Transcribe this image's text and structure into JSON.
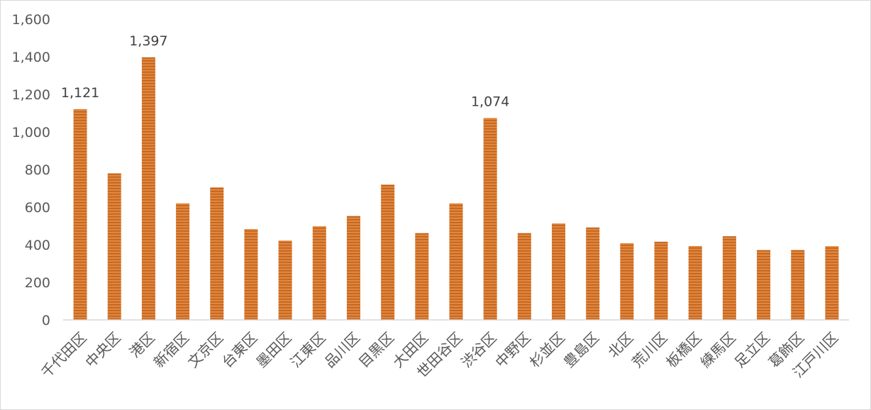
{
  "chart_data": {
    "type": "bar",
    "title": "",
    "xlabel": "",
    "ylabel": "",
    "ylim": [
      0,
      1600
    ],
    "y_ticks": [
      0,
      200,
      400,
      600,
      800,
      1000,
      1200,
      1400,
      1600
    ],
    "y_tick_labels": [
      "0",
      "200",
      "400",
      "600",
      "800",
      "1,000",
      "1,200",
      "1,400",
      "1,600"
    ],
    "grid": false,
    "legend": "none",
    "bar_color": "#e3853a",
    "bar_stripe_color": "#b8601f",
    "categories": [
      "千代田区",
      "中央区",
      "港区",
      "新宿区",
      "文京区",
      "台東区",
      "墨田区",
      "江東区",
      "品川区",
      "目黒区",
      "大田区",
      "世田谷区",
      "渋谷区",
      "中野区",
      "杉並区",
      "豊島区",
      "北区",
      "荒川区",
      "板橋区",
      "練馬区",
      "足立区",
      "葛飾区",
      "江戸川区"
    ],
    "values": [
      1121,
      780,
      1397,
      620,
      705,
      483,
      422,
      498,
      553,
      720,
      462,
      620,
      1074,
      462,
      513,
      492,
      408,
      416,
      393,
      445,
      372,
      372,
      392
    ],
    "data_labels": [
      {
        "index": 0,
        "text": "1,121"
      },
      {
        "index": 2,
        "text": "1,397"
      },
      {
        "index": 12,
        "text": "1,074"
      }
    ]
  }
}
